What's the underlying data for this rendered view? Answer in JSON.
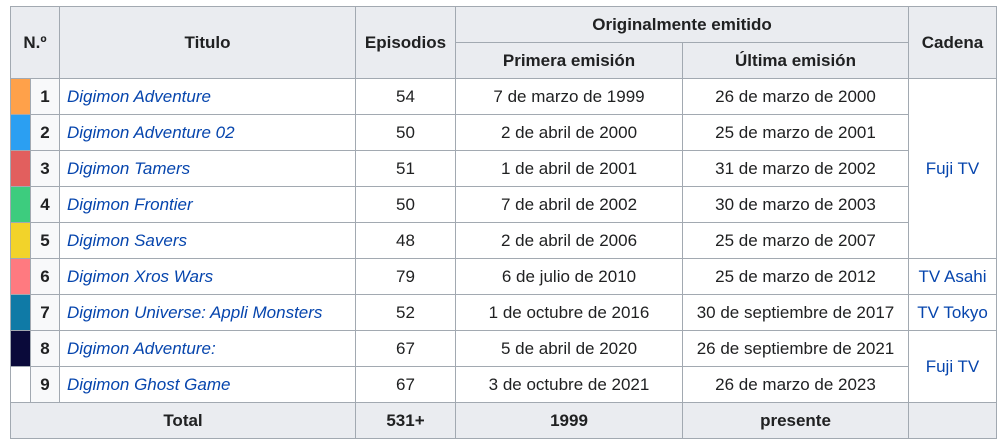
{
  "headers": {
    "num": "N.º",
    "titulo": "Titulo",
    "episodios": "Episodios",
    "originalmente": "Originalmente emitido",
    "primera": "Primera emisión",
    "ultima": "Última emisión",
    "cadena": "Cadena"
  },
  "rows": [
    {
      "color": "#FFA14A",
      "num": "1",
      "titulo": "Digimon Adventure",
      "episodios": "54",
      "primera": "7 de marzo de 1999",
      "ultima": "26 de marzo de 2000"
    },
    {
      "color": "#2B9FF2",
      "num": "2",
      "titulo": "Digimon Adventure 02",
      "episodios": "50",
      "primera": "2 de abril de 2000",
      "ultima": "25 de marzo de 2001"
    },
    {
      "color": "#E25F5E",
      "num": "3",
      "titulo": "Digimon Tamers",
      "episodios": "51",
      "primera": "1 de abril de 2001",
      "ultima": "31 de marzo de 2002"
    },
    {
      "color": "#3DCC7E",
      "num": "4",
      "titulo": "Digimon Frontier",
      "episodios": "50",
      "primera": "7 de abril de 2002",
      "ultima": "30 de marzo de 2003"
    },
    {
      "color": "#F2D32A",
      "num": "5",
      "titulo": "Digimon Savers",
      "episodios": "48",
      "primera": "2 de abril de 2006",
      "ultima": "25 de marzo de 2007"
    },
    {
      "color": "#FF7A80",
      "num": "6",
      "titulo": "Digimon Xros Wars",
      "episodios": "79",
      "primera": "6 de julio de 2010",
      "ultima": "25 de marzo de 2012"
    },
    {
      "color": "#0F7AA6",
      "num": "7",
      "titulo": "Digimon Universe: Appli Monsters",
      "episodios": "52",
      "primera": "1 de octubre de 2016",
      "ultima": "30 de septiembre de 2017"
    },
    {
      "color": "#0A0A3A",
      "num": "8",
      "titulo": "Digimon Adventure:",
      "episodios": "67",
      "primera": "5 de abril de 2020",
      "ultima": "26 de septiembre de 2021"
    },
    {
      "color": "#FFFFFF",
      "num": "9",
      "titulo": "Digimon Ghost Game",
      "episodios": "67",
      "primera": "3 de octubre de 2021",
      "ultima": "26 de marzo de 2023"
    }
  ],
  "cadenas": {
    "fuji1": "Fuji TV",
    "tvasahi": "TV Asahi",
    "tvtokyo": "TV Tokyo",
    "fuji2": "Fuji TV"
  },
  "total": {
    "label": "Total",
    "episodios": "531+",
    "primera": "1999",
    "ultima": "presente"
  }
}
